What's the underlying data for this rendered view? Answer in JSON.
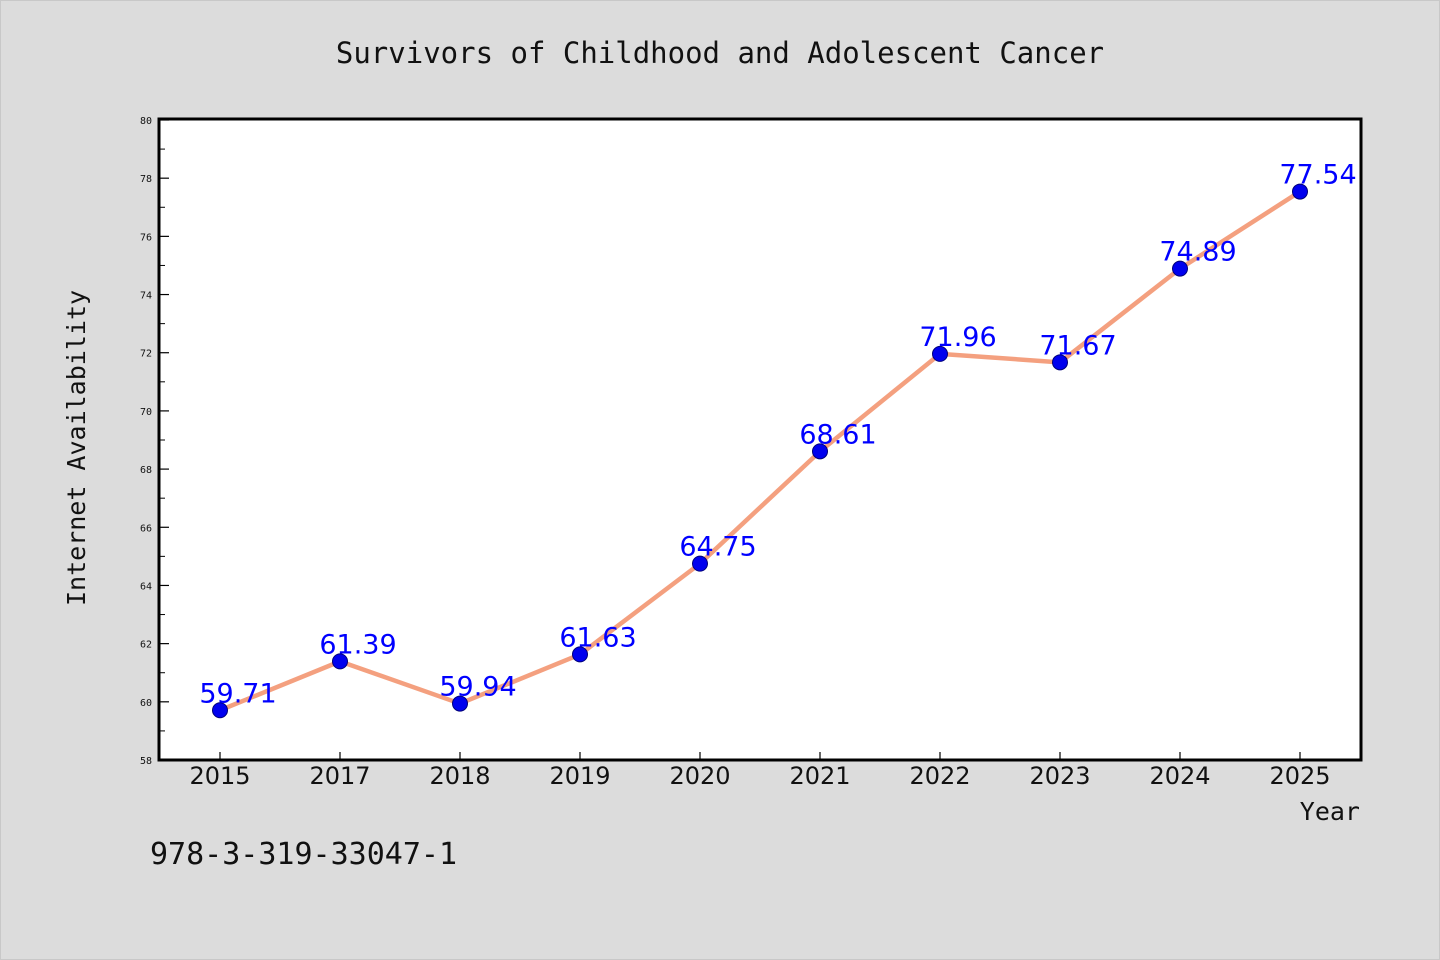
{
  "chart_data": {
    "type": "line",
    "title": "Survivors of Childhood and Adolescent Cancer",
    "xlabel": "Year",
    "ylabel": "Internet Availability",
    "categories": [
      "2015",
      "2017",
      "2018",
      "2019",
      "2020",
      "2021",
      "2022",
      "2023",
      "2024",
      "2025"
    ],
    "values": [
      59.71,
      61.39,
      59.94,
      61.63,
      64.75,
      68.61,
      71.96,
      71.67,
      74.89,
      77.54
    ],
    "data_labels": [
      "59.71",
      "61.39",
      "59.94",
      "61.63",
      "64.75",
      "68.61",
      "71.96",
      "71.67",
      "74.89",
      "77.54"
    ],
    "ylim": [
      58,
      80
    ],
    "yticks": [
      58,
      60,
      62,
      64,
      66,
      68,
      70,
      72,
      74,
      76,
      78,
      80
    ],
    "grid": false,
    "legend": "none",
    "colors": {
      "line": "#f4a07f",
      "marker": "#0000ee",
      "label": "#0000ff",
      "background": "#dcdcdc",
      "plot_background": "#ffffff"
    }
  },
  "footnote": "978-3-319-33047-1"
}
